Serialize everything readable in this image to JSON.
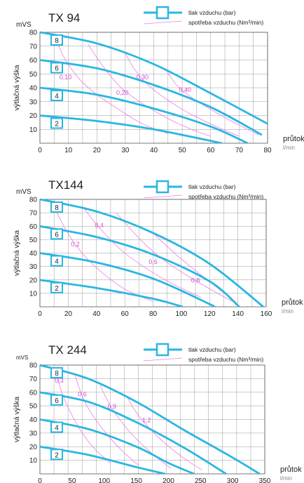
{
  "legend": {
    "pressure_label": "tlak vzduchu (bar)",
    "consumption_label": "spotřeba vzduchu (Nm³/min)"
  },
  "colors": {
    "curve": "#29b6e3",
    "air": "#f07ce6",
    "grid": "#999999",
    "text": "#222222"
  },
  "chart_data": [
    {
      "type": "line",
      "title": "TX 94",
      "ylabel": "výtlačná výška",
      "y_unit": "mVS",
      "xlabel": "průtok",
      "x_unit": "l/min",
      "xlim": [
        0,
        80
      ],
      "ylim": [
        0,
        80
      ],
      "x_ticks": [
        0,
        10,
        20,
        30,
        40,
        50,
        60,
        70,
        80
      ],
      "y_ticks": [
        10,
        20,
        30,
        40,
        50,
        60,
        70,
        80
      ],
      "series": [
        {
          "name": "8",
          "points": [
            [
              0,
              80
            ],
            [
              20,
              72
            ],
            [
              40,
              57
            ],
            [
              60,
              36
            ],
            [
              80,
              14
            ]
          ]
        },
        {
          "name": "6",
          "points": [
            [
              0,
              60
            ],
            [
              20,
              54
            ],
            [
              40,
              42
            ],
            [
              60,
              26
            ],
            [
              78,
              6
            ]
          ]
        },
        {
          "name": "4",
          "points": [
            [
              0,
              40
            ],
            [
              20,
              35
            ],
            [
              40,
              25
            ],
            [
              60,
              12
            ],
            [
              73,
              0
            ]
          ]
        },
        {
          "name": "2",
          "points": [
            [
              0,
              20
            ],
            [
              20,
              16
            ],
            [
              40,
              10
            ],
            [
              64,
              0
            ]
          ]
        }
      ],
      "consumption": [
        {
          "name": "0,10",
          "label_at": [
            9,
            46
          ],
          "points": [
            [
              6,
              73
            ],
            [
              9,
              60
            ],
            [
              14,
              46
            ],
            [
              20,
              35
            ],
            [
              28,
              24
            ],
            [
              36,
              14
            ],
            [
              45,
              7
            ]
          ]
        },
        {
          "name": "0,20",
          "label_at": [
            29,
            35
          ],
          "points": [
            [
              17,
              71
            ],
            [
              22,
              56
            ],
            [
              28,
              41
            ],
            [
              35,
              30
            ],
            [
              43,
              20
            ],
            [
              52,
              11
            ],
            [
              60,
              5
            ]
          ]
        },
        {
          "name": "0,30",
          "label_at": [
            36,
            46
          ],
          "points": [
            [
              30,
              65
            ],
            [
              33,
              54
            ],
            [
              38,
              42
            ],
            [
              45,
              31
            ],
            [
              53,
              21
            ],
            [
              62,
              12
            ],
            [
              70,
              5
            ]
          ]
        },
        {
          "name": "0,40",
          "label_at": [
            51,
            37
          ],
          "points": [
            [
              44,
              54
            ],
            [
              48,
              42
            ],
            [
              54,
              32
            ],
            [
              62,
              22
            ],
            [
              70,
              13
            ],
            [
              77,
              6
            ]
          ]
        }
      ]
    },
    {
      "type": "line",
      "title": "TX144",
      "ylabel": "výtlačná výška",
      "y_unit": "mVS",
      "xlabel": "průtok",
      "x_unit": "l/min",
      "xlim": [
        0,
        160
      ],
      "ylim": [
        0,
        80
      ],
      "x_ticks": [
        0,
        20,
        40,
        60,
        80,
        100,
        120,
        140,
        160
      ],
      "y_ticks": [
        10,
        20,
        30,
        40,
        50,
        60,
        70,
        80
      ],
      "series": [
        {
          "name": "8",
          "points": [
            [
              0,
              80
            ],
            [
              40,
              71
            ],
            [
              80,
              55
            ],
            [
              120,
              32
            ],
            [
              158,
              0
            ]
          ]
        },
        {
          "name": "6",
          "points": [
            [
              0,
              60
            ],
            [
              40,
              52
            ],
            [
              80,
              39
            ],
            [
              120,
              19
            ],
            [
              141,
              0
            ]
          ]
        },
        {
          "name": "4",
          "points": [
            [
              0,
              40
            ],
            [
              40,
              33
            ],
            [
              80,
              21
            ],
            [
              120,
              2
            ],
            [
              122,
              0
            ]
          ]
        },
        {
          "name": "2",
          "points": [
            [
              0,
              20
            ],
            [
              40,
              14
            ],
            [
              80,
              6
            ],
            [
              101,
              0
            ]
          ]
        }
      ],
      "consumption": [
        {
          "name": "0,2",
          "label_at": [
            25,
            45
          ],
          "points": [
            [
              12,
              70
            ],
            [
              18,
              58
            ],
            [
              26,
              45
            ],
            [
              36,
              33
            ],
            [
              48,
              22
            ],
            [
              62,
              12
            ],
            [
              80,
              4
            ]
          ]
        },
        {
          "name": "0,4",
          "label_at": [
            42,
            59
          ],
          "points": [
            [
              30,
              75
            ],
            [
              38,
              64
            ],
            [
              48,
              52
            ],
            [
              60,
              40
            ],
            [
              76,
              28
            ],
            [
              94,
              17
            ],
            [
              114,
              7
            ]
          ]
        },
        {
          "name": "0,6",
          "label_at": [
            80,
            32
          ],
          "points": [
            [
              54,
              70
            ],
            [
              64,
              58
            ],
            [
              76,
              45
            ],
            [
              90,
              33
            ],
            [
              106,
              22
            ],
            [
              124,
              11
            ],
            [
              138,
              3
            ]
          ]
        },
        {
          "name": "0,8",
          "label_at": [
            110,
            18
          ],
          "points": [
            [
              80,
              55
            ],
            [
              92,
              43
            ],
            [
              104,
              32
            ],
            [
              116,
              22
            ],
            [
              128,
              12
            ],
            [
              138,
              4
            ]
          ]
        }
      ]
    },
    {
      "type": "line",
      "title": "TX 244",
      "ylabel": "výtlačná výška",
      "y_unit": "mVS",
      "xlabel": "průtok",
      "x_unit": "l/min",
      "xlim": [
        0,
        350
      ],
      "ylim": [
        0,
        80
      ],
      "x_ticks": [
        0,
        50,
        100,
        150,
        200,
        250,
        300,
        350
      ],
      "y_ticks": [
        10,
        20,
        30,
        40,
        50,
        60,
        70,
        80
      ],
      "series": [
        {
          "name": "8",
          "points": [
            [
              0,
              80
            ],
            [
              75,
              70
            ],
            [
              150,
              53
            ],
            [
              225,
              32
            ],
            [
              300,
              12
            ],
            [
              342,
              0
            ]
          ]
        },
        {
          "name": "6",
          "points": [
            [
              0,
              60
            ],
            [
              75,
              53
            ],
            [
              150,
              38
            ],
            [
              225,
              19
            ],
            [
              290,
              0
            ]
          ]
        },
        {
          "name": "4",
          "points": [
            [
              0,
              40
            ],
            [
              75,
              33
            ],
            [
              150,
              20
            ],
            [
              200,
              8
            ],
            [
              240,
              0
            ]
          ]
        },
        {
          "name": "2",
          "points": [
            [
              0,
              20
            ],
            [
              75,
              14
            ],
            [
              150,
              5
            ],
            [
              195,
              0
            ]
          ]
        }
      ],
      "consumption": [
        {
          "name": "0,3",
          "label_at": [
            30,
            67
          ],
          "points": [
            [
              26,
              76
            ],
            [
              30,
              66
            ],
            [
              38,
              55
            ],
            [
              50,
              43
            ],
            [
              66,
              30
            ],
            [
              86,
              18
            ],
            [
              110,
              8
            ]
          ]
        },
        {
          "name": "0,6",
          "label_at": [
            66,
            57
          ],
          "points": [
            [
              55,
              72
            ],
            [
              62,
              62
            ],
            [
              72,
              51
            ],
            [
              88,
              39
            ],
            [
              108,
              27
            ],
            [
              130,
              16
            ],
            [
              154,
              6
            ]
          ]
        },
        {
          "name": "0,9",
          "label_at": [
            112,
            48
          ],
          "points": [
            [
              94,
              65
            ],
            [
              104,
              55
            ],
            [
              118,
              44
            ],
            [
              136,
              33
            ],
            [
              158,
              22
            ],
            [
              182,
              12
            ],
            [
              204,
              4
            ]
          ]
        },
        {
          "name": "1,2",
          "label_at": [
            166,
            38
          ],
          "points": [
            [
              134,
              58
            ],
            [
              146,
              48
            ],
            [
              162,
              38
            ],
            [
              182,
              28
            ],
            [
              206,
              18
            ],
            [
              232,
              9
            ],
            [
              252,
              3
            ]
          ]
        }
      ]
    }
  ]
}
